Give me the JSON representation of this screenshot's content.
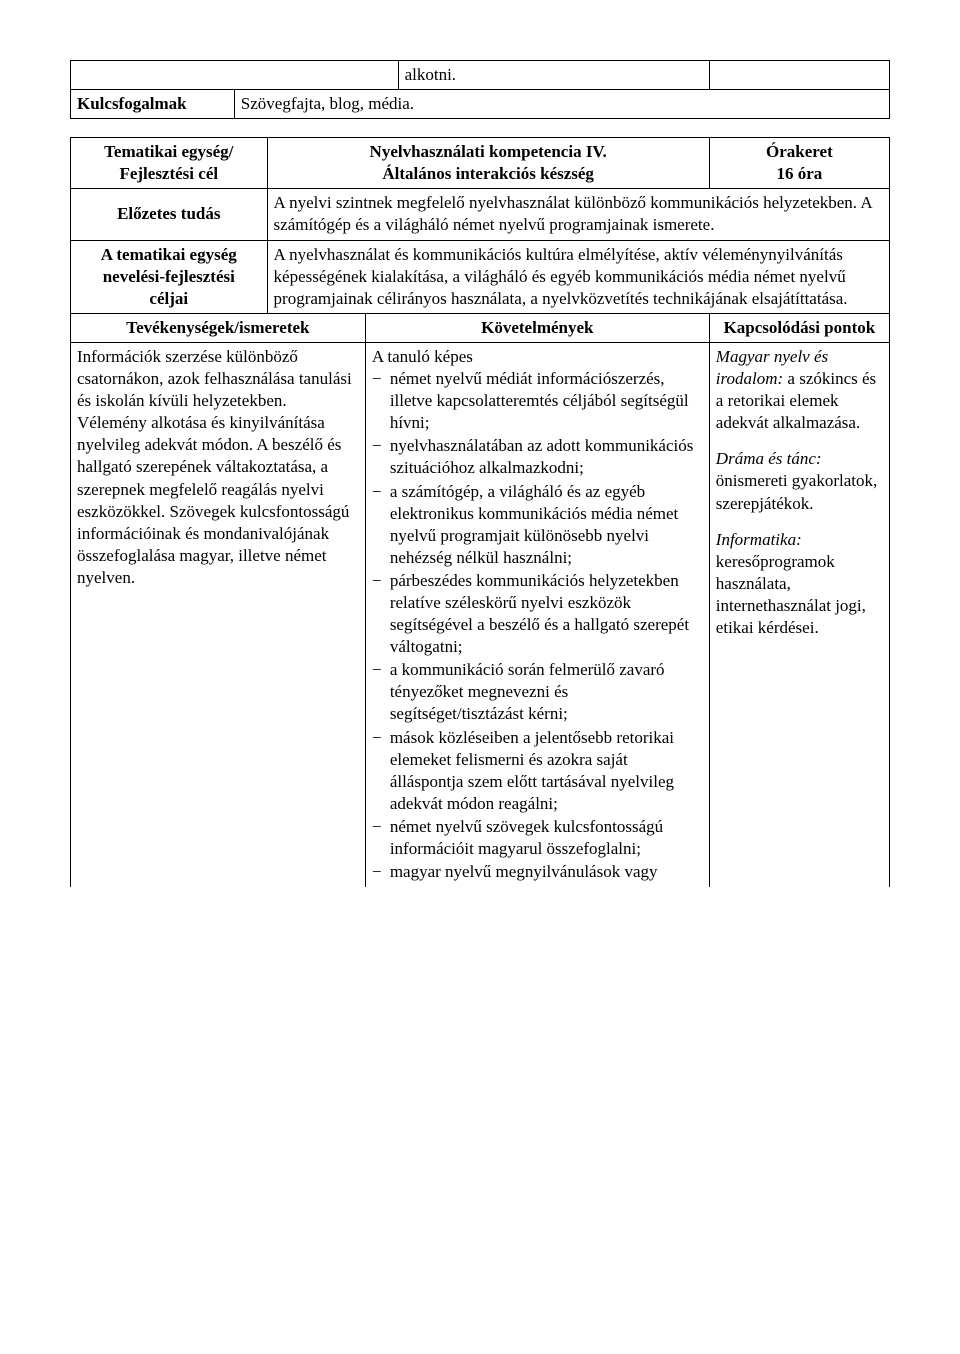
{
  "top_table": {
    "cell_c2_r1": "alkotni.",
    "key_row_label": "Kulcsfogalmak",
    "key_row_value": "Szövegfajta, blog, média."
  },
  "main_table": {
    "header": {
      "left_line1": "Tematikai egység/",
      "left_line2": "Fejlesztési cél",
      "mid_line1": "Nyelvhasználati kompetencia IV.",
      "mid_line2": "Általános interakciós készség",
      "right_line1": "Órakeret",
      "right_line2": "16 óra"
    },
    "row_prereq": {
      "label": "Előzetes tudás",
      "text": "A nyelvi szintnek megfelelő nyelvhasználat különböző kommunikációs helyzetekben. A számítógép és a világháló német nyelvű programjainak ismerete."
    },
    "row_goals": {
      "label_line1": "A tematikai egység",
      "label_line2": "nevelési-fejlesztési",
      "label_line3": "céljai",
      "text": "A nyelvhasználat és kommunikációs kultúra elmélyítése, aktív véleménynyilvánítás képességének kialakítása, a világháló és egyéb kommunikációs média német nyelvű programjainak célirányos használata, a nyelvközvetítés technikájának elsajátíttatása."
    },
    "columns_header": {
      "c1": "Tevékenységek/ismeretek",
      "c2": "Követelmények",
      "c3": "Kapcsolódási pontok"
    },
    "body": {
      "activities": "Információk szerzése különböző csatornákon, azok felhasználása tanulási és iskolán kívüli helyzetekben. Vélemény alkotása és kinyilvánítása nyelvileg adekvát módon. A beszélő és hallgató szerepének váltakoztatása, a szerepnek megfelelő reagálás nyelvi eszközökkel. Szövegek kulcsfontosságú információinak és mondanivalójának összefoglalása magyar, illetve német nyelven.",
      "requirements_intro": "A tanuló képes",
      "requirements_items": [
        "német nyelvű médiát információszerzés, illetve kapcsolatteremtés céljából segítségül hívni;",
        "nyelvhasználatában az adott kommunikációs szituációhoz alkalmazkodni;",
        "a számítógép, a világháló és az egyéb elektronikus kommunikációs média német nyelvű programjait különösebb nyelvi nehézség nélkül használni;",
        "párbeszédes kommunikációs helyzetekben relatíve széleskörű nyelvi eszközök segítségével a beszélő és a hallgató szerepét váltogatni;",
        "a kommunikáció során felmerülő zavaró tényezőket megnevezni és segítséget/tisztázást kérni;",
        "mások közléseiben a jelentősebb retorikai elemeket felismerni és azokra saját álláspontja szem előtt tartásával nyelvileg adekvát módon reagálni;",
        "német nyelvű szövegek kulcsfontosságú információit magyarul összefoglalni;",
        "magyar nyelvű megnyilvánulások vagy"
      ],
      "connections": {
        "p1_label": "Magyar nyelv és irodalom:",
        "p1_text": " a szókincs és a retorikai elemek adekvát alkalmazása.",
        "p2_label": "Dráma és tánc:",
        "p2_text": " önismereti gyakorlatok, szerepjátékok.",
        "p3_label": "Informatika:",
        "p3_text": " keresőprogramok használata, internethasználat jogi, etikai kérdései."
      }
    }
  }
}
